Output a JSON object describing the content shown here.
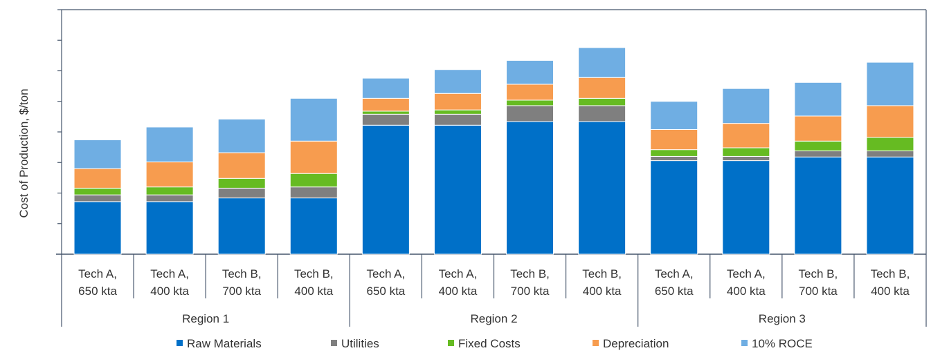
{
  "chart_data": {
    "type": "stacked-bar",
    "title": "",
    "ylabel": "Cost of Production, $/ton",
    "xlabel": "",
    "ylim": [
      0,
      800
    ],
    "y_tick_step": 100,
    "y_tick_labels_shown": false,
    "grid": false,
    "legend_position": "bottom",
    "categories": [
      {
        "label_line1": "Tech A,",
        "label_line2": "650 kta",
        "group": "Region 1"
      },
      {
        "label_line1": "Tech A,",
        "label_line2": "400 kta",
        "group": "Region 1"
      },
      {
        "label_line1": "Tech B,",
        "label_line2": "700 kta",
        "group": "Region 1"
      },
      {
        "label_line1": "Tech B,",
        "label_line2": "400 kta",
        "group": "Region 1"
      },
      {
        "label_line1": "Tech A,",
        "label_line2": "650 kta",
        "group": "Region 2"
      },
      {
        "label_line1": "Tech A,",
        "label_line2": "400 kta",
        "group": "Region 2"
      },
      {
        "label_line1": "Tech B,",
        "label_line2": "700 kta",
        "group": "Region 2"
      },
      {
        "label_line1": "Tech B,",
        "label_line2": "400 kta",
        "group": "Region 2"
      },
      {
        "label_line1": "Tech A,",
        "label_line2": "650 kta",
        "group": "Region 3"
      },
      {
        "label_line1": "Tech A,",
        "label_line2": "400 kta",
        "group": "Region 3"
      },
      {
        "label_line1": "Tech B,",
        "label_line2": "700 kta",
        "group": "Region 3"
      },
      {
        "label_line1": "Tech B,",
        "label_line2": "400 kta",
        "group": "Region 3"
      }
    ],
    "groups": [
      "Region 1",
      "Region 2",
      "Region 3"
    ],
    "series": [
      {
        "name": "Raw Materials",
        "color": "#0070C8",
        "values": [
          172,
          172,
          184,
          184,
          422,
          422,
          434,
          434,
          306,
          306,
          318,
          318
        ]
      },
      {
        "name": "Utilities",
        "color": "#7F7F7F",
        "values": [
          22,
          22,
          32,
          36,
          36,
          36,
          52,
          52,
          14,
          14,
          20,
          20
        ]
      },
      {
        "name": "Fixed Costs",
        "color": "#66BB22",
        "values": [
          22,
          26,
          32,
          44,
          10,
          14,
          18,
          24,
          22,
          28,
          32,
          44
        ]
      },
      {
        "name": "Depreciation",
        "color": "#F79C4F",
        "values": [
          64,
          82,
          84,
          106,
          42,
          54,
          52,
          68,
          66,
          80,
          82,
          104
        ]
      },
      {
        "name": "10% ROCE",
        "color": "#6FAEE3",
        "values": [
          94,
          114,
          110,
          140,
          66,
          78,
          78,
          98,
          92,
          114,
          110,
          142
        ]
      }
    ]
  }
}
